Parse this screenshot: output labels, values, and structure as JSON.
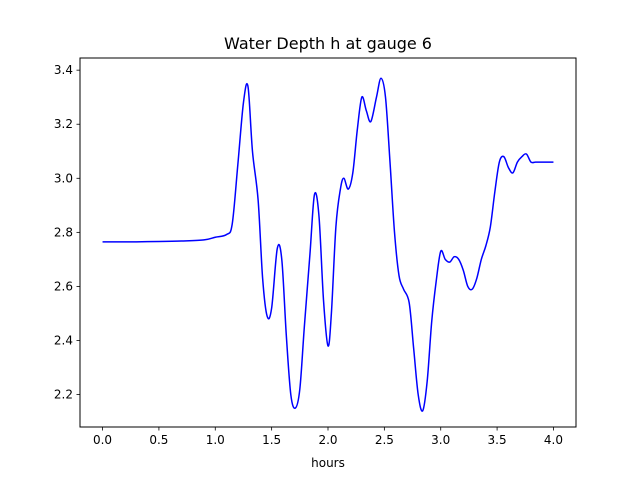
{
  "chart_data": {
    "type": "line",
    "title": "Water Depth h at gauge 6",
    "xlabel": "hours",
    "ylabel": "",
    "xlim": [
      -0.2,
      4.2
    ],
    "ylim": [
      2.08,
      3.445
    ],
    "xticks": [
      0.0,
      0.5,
      1.0,
      1.5,
      2.0,
      2.5,
      3.0,
      3.5,
      4.0
    ],
    "xtick_labels": [
      "0.0",
      "0.5",
      "1.0",
      "1.5",
      "2.0",
      "2.5",
      "3.0",
      "3.5",
      "4.0"
    ],
    "yticks": [
      2.2,
      2.4,
      2.6,
      2.8,
      3.0,
      3.2,
      3.4
    ],
    "ytick_labels": [
      "2.2",
      "2.4",
      "2.6",
      "2.8",
      "3.0",
      "3.2",
      "3.4"
    ],
    "grid": false,
    "series": [
      {
        "color": "#0000ff",
        "x": [
          0.0,
          0.3,
          0.5,
          0.7,
          0.9,
          1.0,
          1.1,
          1.15,
          1.2,
          1.25,
          1.29,
          1.33,
          1.38,
          1.42,
          1.46,
          1.5,
          1.55,
          1.59,
          1.63,
          1.67,
          1.71,
          1.75,
          1.79,
          1.84,
          1.88,
          1.92,
          1.96,
          2.0,
          2.03,
          2.07,
          2.11,
          2.14,
          2.18,
          2.22,
          2.26,
          2.3,
          2.34,
          2.38,
          2.43,
          2.47,
          2.51,
          2.55,
          2.59,
          2.63,
          2.67,
          2.72,
          2.76,
          2.8,
          2.84,
          2.88,
          2.92,
          2.96,
          3.0,
          3.04,
          3.08,
          3.12,
          3.16,
          3.2,
          3.24,
          3.28,
          3.32,
          3.36,
          3.4,
          3.44,
          3.48,
          3.52,
          3.56,
          3.6,
          3.64,
          3.68,
          3.72,
          3.76,
          3.8,
          3.84,
          3.88,
          3.92,
          3.96,
          4.0
        ],
        "y": [
          2.765,
          2.765,
          2.766,
          2.768,
          2.772,
          2.782,
          2.792,
          2.83,
          3.05,
          3.28,
          3.34,
          3.1,
          2.92,
          2.63,
          2.49,
          2.52,
          2.74,
          2.7,
          2.42,
          2.2,
          2.15,
          2.22,
          2.45,
          2.72,
          2.94,
          2.86,
          2.55,
          2.38,
          2.5,
          2.82,
          2.96,
          3.0,
          2.96,
          3.02,
          3.18,
          3.3,
          3.25,
          3.21,
          3.3,
          3.37,
          3.3,
          3.06,
          2.8,
          2.64,
          2.59,
          2.54,
          2.37,
          2.2,
          2.14,
          2.25,
          2.47,
          2.62,
          2.73,
          2.7,
          2.69,
          2.71,
          2.7,
          2.66,
          2.6,
          2.59,
          2.63,
          2.7,
          2.75,
          2.82,
          2.95,
          3.06,
          3.08,
          3.04,
          3.02,
          3.06,
          3.08,
          3.09,
          3.06,
          3.06,
          3.06,
          3.06,
          3.06,
          3.06
        ]
      }
    ]
  }
}
